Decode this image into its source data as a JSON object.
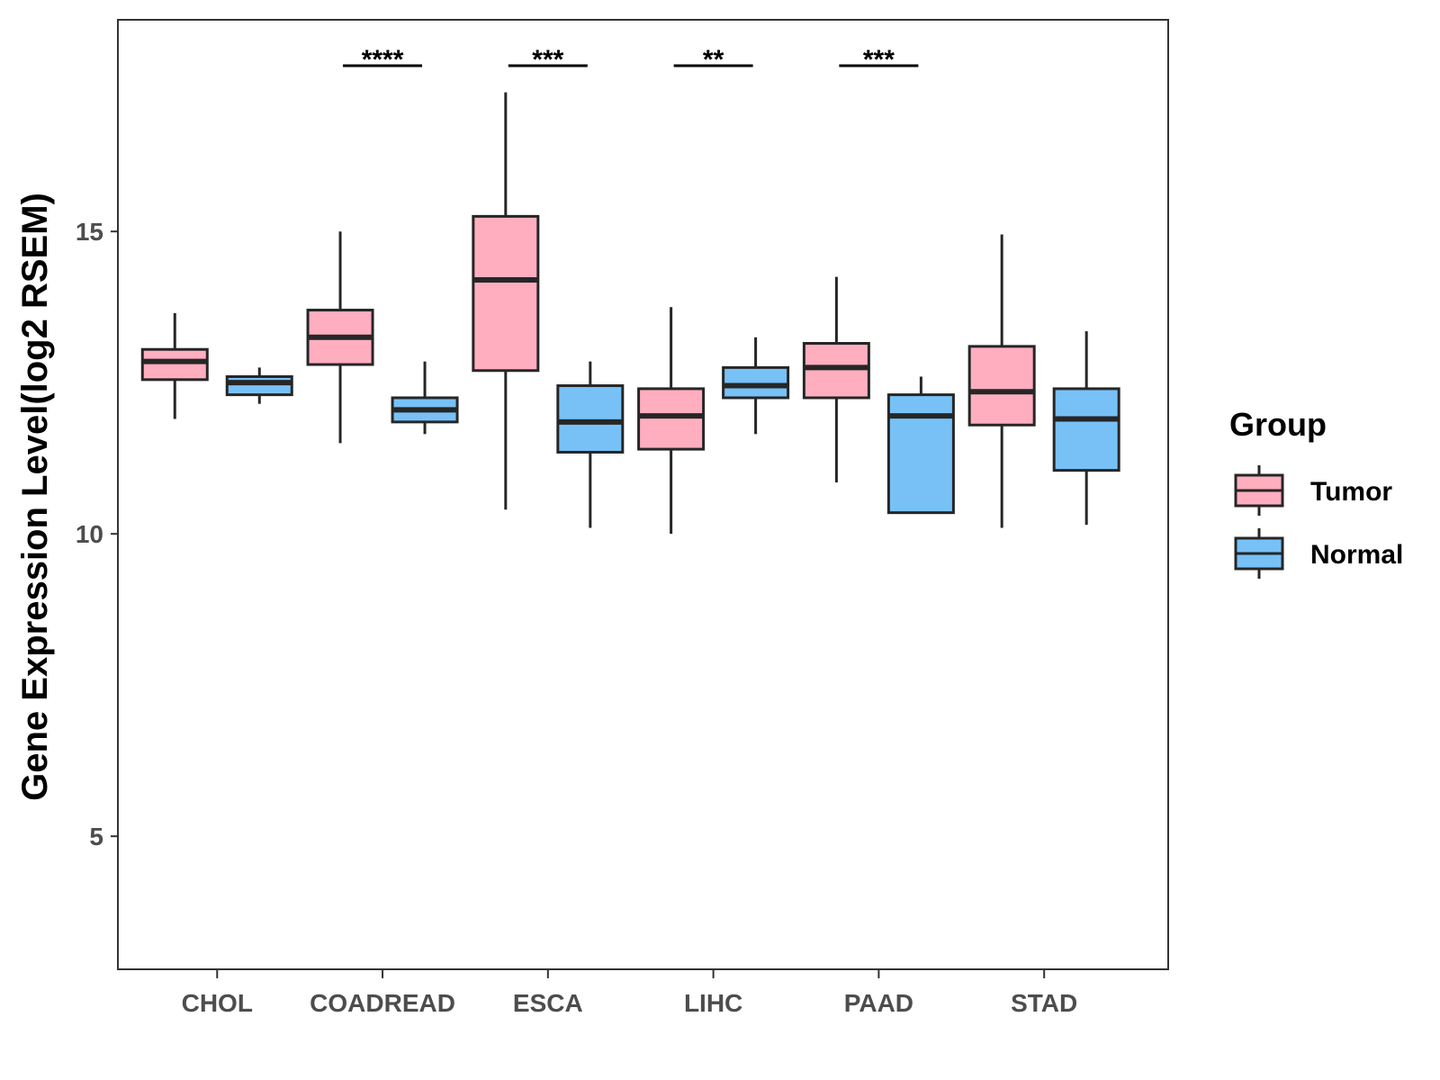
{
  "chart_data": {
    "type": "box",
    "title": "",
    "xlabel": "",
    "ylabel": "Gene Expression Level(log2 RSEM)",
    "ylim": [
      2.8,
      18.5
    ],
    "yticks": [
      5,
      10,
      15
    ],
    "grid": false,
    "categories": [
      "CHOL",
      "COADREAD",
      "ESCA",
      "LIHC",
      "PAAD",
      "STAD"
    ],
    "groups": [
      {
        "name": "Tumor",
        "color": "#FFAEC0"
      },
      {
        "name": "Normal",
        "color": "#77C1F7"
      }
    ],
    "series": [
      {
        "name": "Tumor",
        "boxes": [
          {
            "category": "CHOL",
            "min": 11.9,
            "q1": 12.55,
            "median": 12.85,
            "q3": 13.05,
            "max": 13.65
          },
          {
            "category": "COADREAD",
            "min": 11.5,
            "q1": 12.8,
            "median": 13.25,
            "q3": 13.7,
            "max": 15.0
          },
          {
            "category": "ESCA",
            "min": 10.4,
            "q1": 12.7,
            "median": 14.2,
            "q3": 15.25,
            "max": 17.3
          },
          {
            "category": "LIHC",
            "min": 10.0,
            "q1": 11.4,
            "median": 11.95,
            "q3": 12.4,
            "max": 13.75
          },
          {
            "category": "PAAD",
            "min": 10.85,
            "q1": 12.25,
            "median": 12.75,
            "q3": 13.15,
            "max": 14.25
          },
          {
            "category": "STAD",
            "min": 10.1,
            "q1": 11.8,
            "median": 12.35,
            "q3": 13.1,
            "max": 14.95
          }
        ]
      },
      {
        "name": "Normal",
        "boxes": [
          {
            "category": "CHOL",
            "min": 12.15,
            "q1": 12.3,
            "median": 12.5,
            "q3": 12.6,
            "max": 12.75
          },
          {
            "category": "COADREAD",
            "min": 11.65,
            "q1": 11.85,
            "median": 12.05,
            "q3": 12.25,
            "max": 12.85
          },
          {
            "category": "ESCA",
            "min": 10.1,
            "q1": 11.35,
            "median": 11.85,
            "q3": 12.45,
            "max": 12.85
          },
          {
            "category": "LIHC",
            "min": 11.65,
            "q1": 12.25,
            "median": 12.45,
            "q3": 12.75,
            "max": 13.25
          },
          {
            "category": "PAAD",
            "min": 10.35,
            "q1": 10.35,
            "median": 11.95,
            "q3": 12.3,
            "max": 12.6
          },
          {
            "category": "STAD",
            "min": 10.15,
            "q1": 11.05,
            "median": 11.9,
            "q3": 12.4,
            "max": 13.35
          }
        ]
      }
    ],
    "significance": [
      {
        "category": "COADREAD",
        "label": "****"
      },
      {
        "category": "ESCA",
        "label": "***"
      },
      {
        "category": "LIHC",
        "label": "**"
      },
      {
        "category": "PAAD",
        "label": "***"
      }
    ],
    "legend": {
      "title": "Group",
      "position": "right",
      "entries": [
        "Tumor",
        "Normal"
      ]
    }
  }
}
